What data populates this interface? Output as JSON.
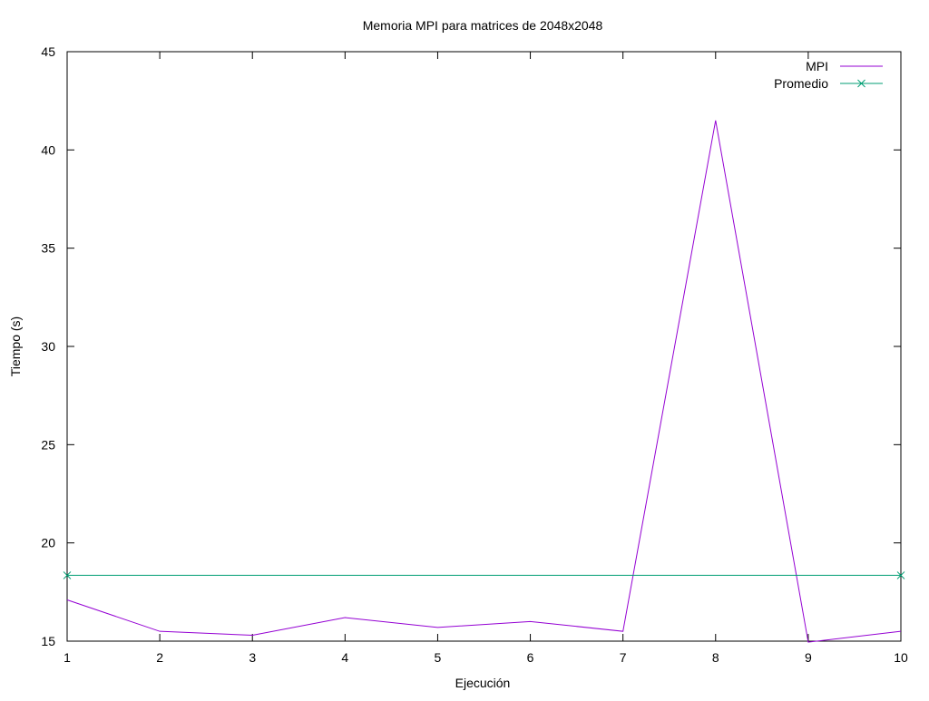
{
  "chart_data": {
    "type": "line",
    "title": "Memoria MPI para matrices de 2048x2048",
    "xlabel": "Ejecución",
    "ylabel": "Tiempo (s)",
    "xlim": [
      1,
      10
    ],
    "ylim": [
      15,
      45
    ],
    "x_ticks": [
      1,
      2,
      3,
      4,
      5,
      6,
      7,
      8,
      9,
      10
    ],
    "y_ticks": [
      15,
      20,
      25,
      30,
      35,
      40,
      45
    ],
    "grid": false,
    "legend_position": "top-right",
    "series": [
      {
        "name": "MPI",
        "color": "#9400d3",
        "marker": "none",
        "x": [
          1,
          2,
          3,
          4,
          5,
          6,
          7,
          8,
          9,
          10
        ],
        "values": [
          17.1,
          15.5,
          15.3,
          16.2,
          15.7,
          16.0,
          15.5,
          41.5,
          14.95,
          15.5
        ]
      },
      {
        "name": "Promedio",
        "color": "#009e73",
        "marker": "x",
        "x": [
          1,
          10
        ],
        "values": [
          18.35,
          18.35
        ]
      }
    ]
  }
}
